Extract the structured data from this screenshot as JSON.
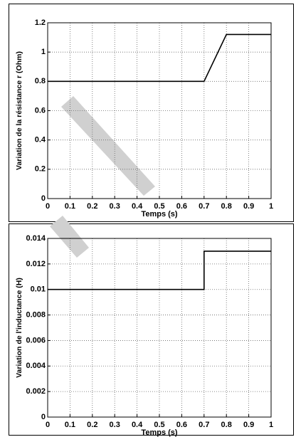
{
  "chart_data": [
    {
      "type": "line",
      "x_label": "Temps (s)",
      "y_label": "Variation de la résistance r (Ohm)",
      "x": [
        0,
        0.7,
        0.8,
        1
      ],
      "series": [
        {
          "color": "#000000",
          "values": [
            0.8,
            0.8,
            1.12,
            1.12
          ]
        }
      ],
      "xlim": [
        0,
        1
      ],
      "xticks": [
        0,
        0.1,
        0.2,
        0.3,
        0.4,
        0.5,
        0.6,
        0.7,
        0.8,
        0.9,
        1
      ],
      "ylim": [
        0,
        1.2
      ],
      "yticks": [
        0,
        0.2,
        0.4,
        0.6,
        0.8,
        1,
        1.2
      ],
      "grid": true
    },
    {
      "type": "line",
      "x_label": "Temps (s)",
      "y_label": "Variation de l'inductance (H)",
      "x": [
        0,
        0.7,
        0.7,
        1
      ],
      "series": [
        {
          "color": "#000000",
          "values": [
            0.01,
            0.01,
            0.013,
            0.013
          ]
        }
      ],
      "xlim": [
        0,
        1
      ],
      "xticks": [
        0,
        0.1,
        0.2,
        0.3,
        0.4,
        0.5,
        0.6,
        0.7,
        0.8,
        0.9,
        1
      ],
      "ylim": [
        0,
        0.014
      ],
      "yticks": [
        0,
        0.002,
        0.004,
        0.006,
        0.008,
        0.01,
        0.012,
        0.014
      ],
      "grid": true
    }
  ]
}
